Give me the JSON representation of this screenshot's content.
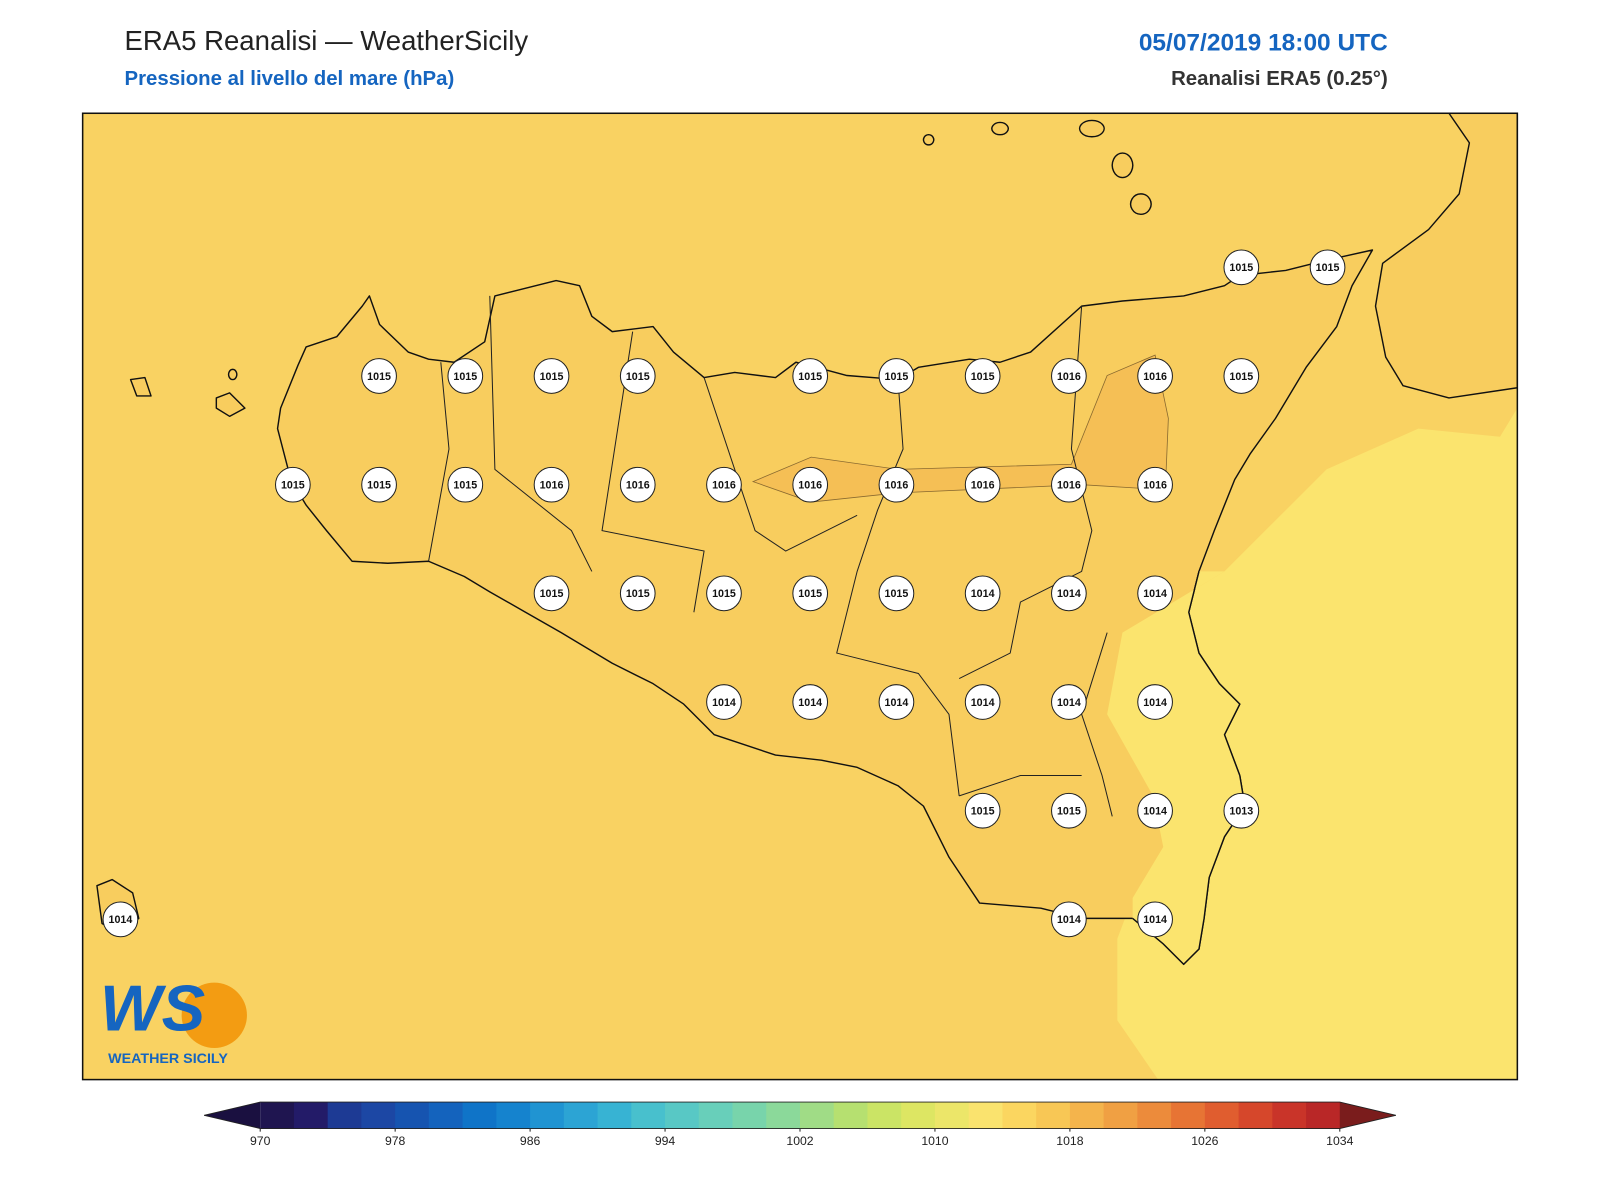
{
  "header": {
    "title": "ERA5 Reanalisi — WeatherSicily",
    "subtitle": "Pressione al livello del mare (hPa)",
    "datetime": "05/07/2019 18:00 UTC",
    "source": "Reanalisi ERA5 (0.25°)"
  },
  "stations": [
    [
      null,
      null,
      null,
      null,
      null,
      null,
      null,
      null,
      null,
      null,
      null,
      null,
      null,
      1015,
      1015
    ],
    [
      null,
      null,
      null,
      1015,
      1015,
      1015,
      1015,
      null,
      1015,
      1015,
      1015,
      1016,
      1016,
      1015,
      null
    ],
    [
      null,
      null,
      1015,
      1015,
      1015,
      1016,
      1016,
      1016,
      1016,
      1016,
      1016,
      1016,
      1016,
      null,
      null
    ],
    [
      null,
      null,
      null,
      null,
      null,
      1015,
      1015,
      1015,
      1015,
      1015,
      1014,
      1014,
      1014,
      null,
      null
    ],
    [
      null,
      null,
      null,
      null,
      null,
      null,
      null,
      1014,
      1014,
      1014,
      1014,
      1014,
      1014,
      null,
      null
    ],
    [
      null,
      null,
      null,
      null,
      null,
      null,
      null,
      null,
      null,
      null,
      1015,
      1015,
      1014,
      1013,
      null
    ],
    [
      1014,
      null,
      null,
      null,
      null,
      null,
      null,
      null,
      null,
      null,
      null,
      1014,
      1014,
      null,
      null
    ]
  ],
  "colorbar": {
    "clim": [
      970,
      1034
    ],
    "ticks": [
      970,
      978,
      986,
      994,
      1002,
      1010,
      1018,
      1026,
      1034
    ],
    "colors": [
      "#1f1550",
      "#231b68",
      "#1d3a94",
      "#1c47a4",
      "#1654b0",
      "#1463bd",
      "#0f74c8",
      "#1583ce",
      "#2094d2",
      "#2ca4d4",
      "#37b3d3",
      "#48c0cd",
      "#58c8c5",
      "#68cfba",
      "#78d4ab",
      "#8bd99a",
      "#a0dc86",
      "#b6e070",
      "#cbe465",
      "#dde663",
      "#ece669",
      "#fae36e",
      "#fbd660",
      "#f8c755",
      "#f4b44c",
      "#f0a043",
      "#ec8b3b",
      "#e77434",
      "#e05d2f",
      "#d6472b",
      "#c93429",
      "#b92727"
    ],
    "under": "#1a1040",
    "over": "#7a1c1c"
  },
  "logo": {
    "mark": "WS",
    "text": "WEATHER SICILY"
  }
}
